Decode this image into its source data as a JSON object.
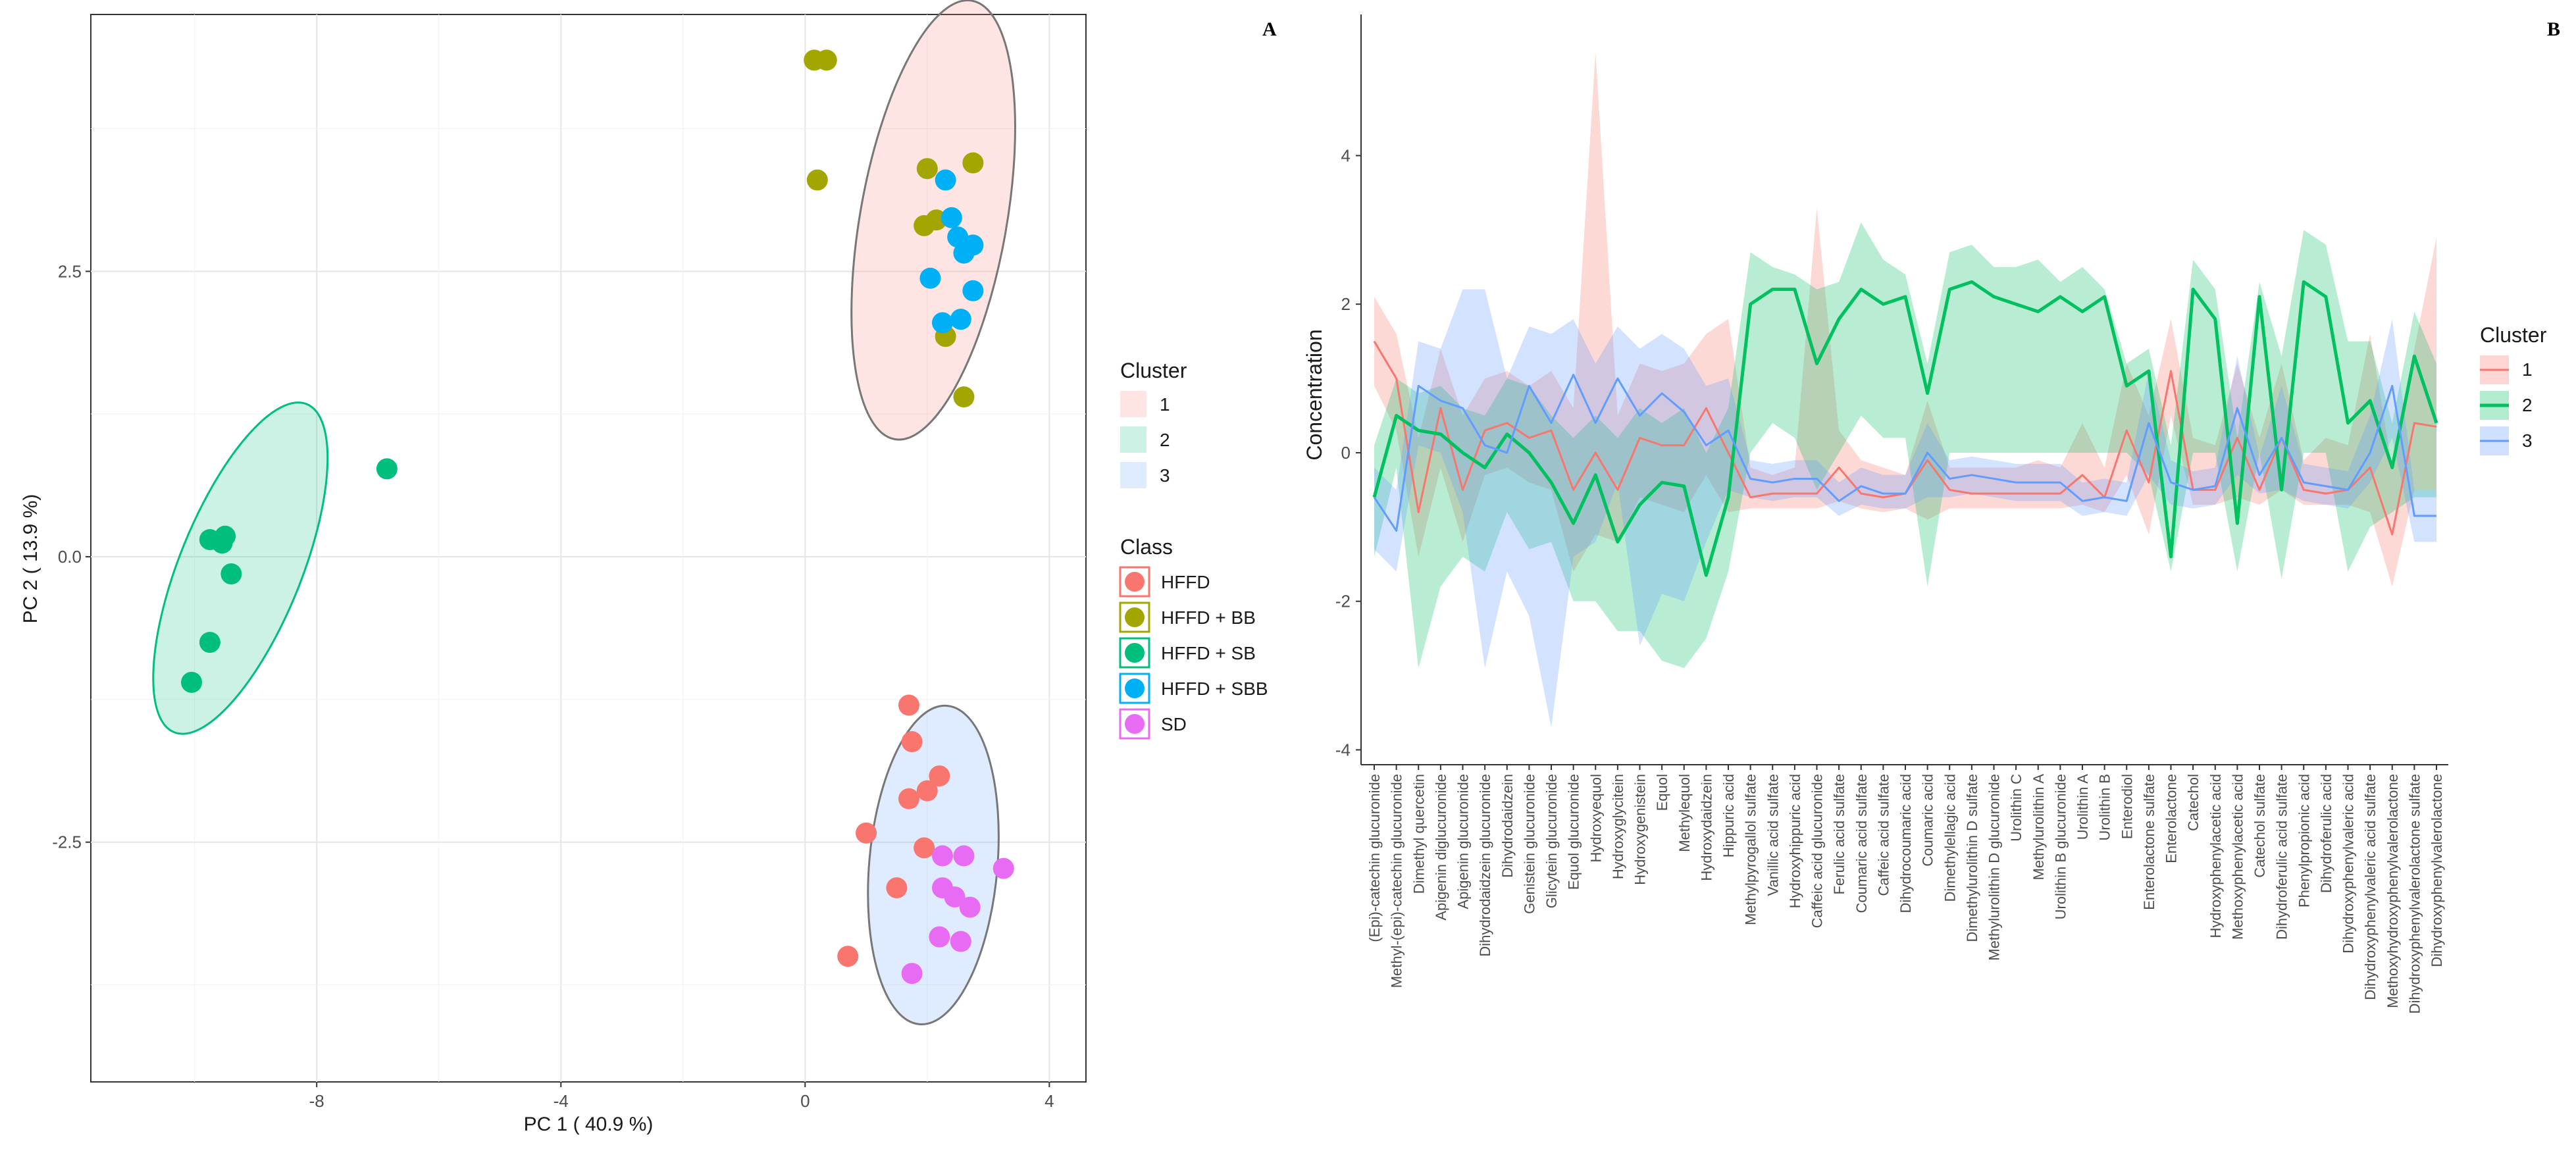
{
  "panel_labels": {
    "left": "A",
    "right": "B"
  },
  "colors": {
    "HFFD": "#f8766d",
    "HFFD + BB": "#a3a500",
    "HFFD + SB": "#00bf7d",
    "HFFD + SBB": "#00b0f6",
    "SD": "#e76bf3",
    "cluster1": "#f8766d",
    "cluster2": "#00c060",
    "cluster3": "#619cff",
    "grid": "#e5e5e5",
    "axis": "#333333"
  },
  "chart_data": [
    {
      "type": "scatter",
      "title": "",
      "xlabel": "PC 1 ( 40.9 %)",
      "ylabel": "PC 2 ( 13.9 %)",
      "xlim": [
        -11.7,
        4.6
      ],
      "ylim": [
        -4.6,
        4.75
      ],
      "xticks": [
        -8,
        -4,
        0,
        4
      ],
      "yticks": [
        2.5,
        0.0,
        -2.5
      ],
      "xtick_labels": [
        "-8",
        "-4",
        "0",
        "4"
      ],
      "ytick_labels": [
        "2.5",
        "0.0",
        "-2.5"
      ],
      "grid": true,
      "ellipses": [
        {
          "cluster": "1",
          "fill": "#f8766d",
          "cx": 2.1,
          "cy": 2.95,
          "rx": 1.2,
          "ry": 1.95,
          "angle": 10
        },
        {
          "cluster": "2",
          "fill": "#00bf7d",
          "cx": -9.25,
          "cy": -0.1,
          "rx": 1.0,
          "ry": 1.55,
          "angle": 22
        },
        {
          "cluster": "3",
          "fill": "#619cff",
          "cx": 2.1,
          "cy": -2.7,
          "rx": 1.05,
          "ry": 1.4,
          "angle": 5
        }
      ],
      "series": [
        {
          "name": "HFFD",
          "color": "#f8766d",
          "x": [
            1.7,
            1.75,
            2.2,
            1.7,
            2.0,
            1.0,
            1.95,
            1.5,
            0.7
          ],
          "y": [
            -1.3,
            -1.62,
            -1.92,
            -2.12,
            -2.05,
            -2.42,
            -2.55,
            -2.9,
            -3.5
          ]
        },
        {
          "name": "HFFD + BB",
          "color": "#a3a500",
          "x": [
            0.15,
            0.35,
            0.2,
            2.0,
            2.75,
            2.15,
            1.95,
            2.3,
            2.6
          ],
          "y": [
            4.35,
            4.35,
            3.3,
            3.4,
            3.45,
            2.95,
            2.9,
            1.93,
            1.4
          ]
        },
        {
          "name": "HFFD + SB",
          "color": "#00bf7d",
          "x": [
            -6.85,
            -9.75,
            -9.5,
            -9.55,
            -9.4,
            -9.75,
            -10.05
          ],
          "y": [
            0.77,
            0.15,
            0.18,
            0.12,
            -0.15,
            -0.75,
            -1.1
          ]
        },
        {
          "name": "HFFD + SBB",
          "color": "#00b0f6",
          "x": [
            2.3,
            2.4,
            2.5,
            2.75,
            2.6,
            2.05,
            2.75,
            2.25,
            2.55
          ],
          "y": [
            3.3,
            2.97,
            2.8,
            2.73,
            2.66,
            2.44,
            2.33,
            2.05,
            2.08
          ]
        },
        {
          "name": "SD",
          "color": "#e76bf3",
          "x": [
            2.25,
            2.6,
            3.25,
            2.25,
            2.45,
            2.7,
            2.2,
            2.55,
            1.75
          ],
          "y": [
            -2.62,
            -2.62,
            -2.73,
            -2.9,
            -2.98,
            -3.07,
            -3.33,
            -3.37,
            -3.65
          ]
        }
      ],
      "legend": [
        {
          "title": "Cluster",
          "entries": [
            "1",
            "2",
            "3"
          ],
          "colors": [
            "#f8766d",
            "#00bf7d",
            "#619cff"
          ]
        },
        {
          "title": "Class",
          "entries": [
            "HFFD",
            "HFFD + BB",
            "HFFD + SB",
            "HFFD + SBB",
            "SD"
          ],
          "colors": [
            "#f8766d",
            "#a3a500",
            "#00bf7d",
            "#00b0f6",
            "#e76bf3"
          ]
        }
      ],
      "legend_position": "right"
    },
    {
      "type": "line",
      "title": "",
      "xlabel": "",
      "ylabel": "Concentration",
      "ylim": [
        -4.2,
        5.9
      ],
      "yticks": [
        -4,
        -2,
        0,
        2,
        4
      ],
      "ytick_labels": [
        "-4",
        "-2",
        "0",
        "2",
        "4"
      ],
      "grid": false,
      "categories": [
        "(Epi)-catechin glucuronide",
        "Methyl-(epi)-catechin glucuronide",
        "Dimethyl quercetin",
        "Apigenin diglucuronide",
        "Apigenin glucuronide",
        "Dihydrodaidzein glucuronide",
        "Dihydrodaidzein",
        "Genistein glucuronide",
        "Glicytein glucuronide",
        "Equol glucuronide",
        "Hydroxyequol",
        "Hydroxyglycitein",
        "Hydroxygenistein",
        "Equol",
        "Methylequol",
        "Hydroxydaidzein",
        "Hippuric acid",
        "Methylpyrogallol sulfate",
        "Vanillic acid sulfate",
        "Hydroxyhippuric acid",
        "Caffeic acid glucuronide",
        "Ferulic acid sulfate",
        "Coumaric acid sulfate",
        "Caffeic acid sulfate",
        "Dihydrocoumaric acid",
        "Coumaric acid",
        "Dimethylellagic acid",
        "Dimethylurolithin D sulfate",
        "Methylurolithin D glucuronide",
        "Urolithin C",
        "Methylurolithin A",
        "Urolithin B glucuronide",
        "Urolithin A",
        "Urolithin B",
        "Enterodiol",
        "Enterolactone sulfate",
        "Enterolactone",
        "Catechol",
        "Hydroxyphenylacetic acid",
        "Methoxyphenylacetic acid",
        "Catechol sulfate",
        "Dihydroferulic acid sulfate",
        "Phenylpropionic acid",
        "Dihydroferulic acid",
        "Dihydroxyphenylvaleric acid",
        "Dihydroxyphenylvaleric acid sulfate",
        "Methoxyhydroxyphenylvalerolactone",
        "Dihydroxyphenylvalerolactone sulfate",
        "Dihydroxyphenylvalerolactone"
      ],
      "series": [
        {
          "name": "1",
          "color": "#f8766d",
          "values": [
            1.5,
            1.0,
            -0.8,
            0.6,
            -0.5,
            0.3,
            0.4,
            0.2,
            0.3,
            -0.5,
            0.0,
            -0.5,
            0.2,
            0.1,
            0.1,
            0.6,
            0.0,
            -0.6,
            -0.55,
            -0.55,
            -0.55,
            -0.2,
            -0.55,
            -0.6,
            -0.55,
            -0.1,
            -0.5,
            -0.55,
            -0.55,
            -0.55,
            -0.55,
            -0.55,
            -0.3,
            -0.6,
            0.3,
            -0.4,
            1.1,
            -0.5,
            -0.5,
            0.2,
            -0.5,
            0.2,
            -0.5,
            -0.55,
            -0.5,
            -0.2,
            -1.1,
            0.4,
            0.35
          ],
          "lower": [
            0.9,
            0.3,
            -1.4,
            -0.2,
            -1.2,
            -0.3,
            -0.2,
            -0.4,
            -0.5,
            -1.6,
            -1.1,
            -1.2,
            -0.6,
            -0.7,
            -0.8,
            -0.3,
            -0.8,
            -0.75,
            -0.75,
            -0.75,
            -0.75,
            -0.65,
            -0.75,
            -0.8,
            -0.75,
            -0.9,
            -0.75,
            -0.75,
            -0.75,
            -0.75,
            -0.75,
            -0.75,
            -0.7,
            -0.8,
            -0.3,
            -1.1,
            0.5,
            -0.7,
            -0.7,
            -0.6,
            -0.7,
            -0.5,
            -0.7,
            -0.7,
            -0.7,
            -0.8,
            -1.8,
            -0.5,
            -0.5
          ],
          "upper": [
            2.1,
            1.6,
            0.2,
            1.4,
            0.5,
            1.0,
            1.1,
            0.9,
            1.1,
            0.6,
            5.4,
            0.5,
            1.2,
            1.1,
            1.2,
            1.6,
            1.8,
            -0.2,
            -0.3,
            -0.2,
            3.3,
            0.3,
            -0.1,
            -0.2,
            -0.3,
            0.7,
            -0.2,
            -0.2,
            -0.2,
            -0.2,
            -0.1,
            -0.2,
            0.4,
            -0.2,
            1.2,
            0.5,
            1.8,
            0.2,
            0.1,
            1.2,
            0.2,
            1.2,
            -0.1,
            0.2,
            0.1,
            1.6,
            -0.2,
            1.4,
            2.9
          ]
        },
        {
          "name": "2",
          "color": "#00c060",
          "values": [
            -0.6,
            0.5,
            0.3,
            0.25,
            0.0,
            -0.2,
            0.25,
            0.0,
            -0.4,
            -0.95,
            -0.3,
            -1.2,
            -0.7,
            -0.4,
            -0.45,
            -1.65,
            -0.6,
            2.0,
            2.2,
            2.2,
            1.2,
            1.8,
            2.2,
            2.0,
            2.1,
            0.8,
            2.2,
            2.3,
            2.1,
            2.0,
            1.9,
            2.1,
            1.9,
            2.1,
            0.9,
            1.1,
            -1.4,
            2.2,
            1.8,
            -0.95,
            2.1,
            -0.5,
            2.3,
            2.1,
            0.4,
            0.7,
            -0.2,
            1.3,
            0.4
          ],
          "lower": [
            -1.4,
            -0.2,
            -2.9,
            -1.8,
            -1.4,
            -1.6,
            -0.8,
            -1.3,
            -1.2,
            -2.0,
            -2.0,
            -2.4,
            -2.4,
            -2.8,
            -2.9,
            -2.5,
            -1.6,
            0.0,
            0.4,
            0.2,
            -0.5,
            0.0,
            0.5,
            0.2,
            0.2,
            -1.8,
            0.0,
            0.0,
            0.0,
            0.0,
            0.0,
            0.0,
            0.0,
            0.0,
            0.0,
            -0.3,
            -1.6,
            0.0,
            0.0,
            -1.6,
            0.0,
            -1.7,
            0.0,
            0.0,
            -1.6,
            -1.0,
            -0.8,
            -0.6,
            -0.6
          ],
          "upper": [
            0.1,
            1.0,
            0.8,
            0.9,
            0.6,
            0.5,
            1.0,
            0.9,
            0.5,
            0.2,
            0.5,
            0.2,
            0.6,
            0.4,
            0.6,
            0.0,
            0.6,
            2.7,
            2.5,
            2.4,
            2.2,
            2.3,
            3.1,
            2.6,
            2.4,
            1.2,
            2.7,
            2.8,
            2.5,
            2.5,
            2.6,
            2.3,
            2.5,
            2.2,
            1.2,
            1.4,
            0.1,
            2.6,
            2.2,
            0.2,
            2.3,
            1.3,
            3.0,
            2.8,
            1.5,
            1.5,
            0.4,
            1.9,
            1.2
          ]
        },
        {
          "name": "3",
          "color": "#619cff",
          "values": [
            -0.6,
            -1.05,
            0.9,
            0.7,
            0.6,
            0.1,
            0.0,
            0.9,
            0.4,
            1.05,
            0.4,
            1.0,
            0.5,
            0.8,
            0.55,
            0.1,
            0.3,
            -0.35,
            -0.4,
            -0.35,
            -0.35,
            -0.65,
            -0.45,
            -0.55,
            -0.55,
            0.0,
            -0.35,
            -0.3,
            -0.35,
            -0.4,
            -0.4,
            -0.4,
            -0.65,
            -0.6,
            -0.65,
            0.4,
            -0.4,
            -0.5,
            -0.45,
            0.6,
            -0.3,
            0.2,
            -0.4,
            -0.45,
            -0.5,
            0.0,
            0.9,
            -0.85,
            -0.85
          ],
          "lower": [
            -1.3,
            -1.6,
            0.1,
            0.0,
            -0.8,
            -2.9,
            -1.6,
            -2.2,
            -3.7,
            -1.4,
            -1.2,
            -0.4,
            -2.6,
            -1.9,
            -2.0,
            -1.2,
            -0.5,
            -0.6,
            -0.65,
            -0.6,
            -0.6,
            -0.85,
            -0.7,
            -0.75,
            -0.75,
            -0.6,
            -0.6,
            -0.55,
            -0.6,
            -0.65,
            -0.65,
            -0.65,
            -0.85,
            -0.8,
            -0.85,
            -0.3,
            -0.7,
            -0.75,
            -0.7,
            -0.3,
            -0.55,
            -0.5,
            -0.65,
            -0.7,
            -0.75,
            -0.4,
            0.2,
            -1.2,
            -1.2
          ],
          "upper": [
            -0.2,
            -0.5,
            1.5,
            1.4,
            2.2,
            2.2,
            1.0,
            1.7,
            1.6,
            1.8,
            1.2,
            1.7,
            1.4,
            1.6,
            1.4,
            0.9,
            1.0,
            -0.1,
            -0.15,
            -0.1,
            -0.1,
            -0.4,
            -0.2,
            -0.3,
            -0.3,
            0.4,
            -0.1,
            -0.05,
            -0.1,
            -0.15,
            -0.15,
            -0.15,
            -0.4,
            -0.35,
            -0.4,
            1.1,
            -0.1,
            -0.25,
            -0.2,
            1.3,
            -0.05,
            0.9,
            -0.15,
            -0.2,
            -0.25,
            0.5,
            1.8,
            -0.5,
            -0.5
          ]
        }
      ],
      "legend": {
        "title": "Cluster",
        "entries": [
          "1",
          "2",
          "3"
        ],
        "colors": [
          "#f8766d",
          "#00c060",
          "#619cff"
        ]
      },
      "legend_position": "right"
    }
  ]
}
